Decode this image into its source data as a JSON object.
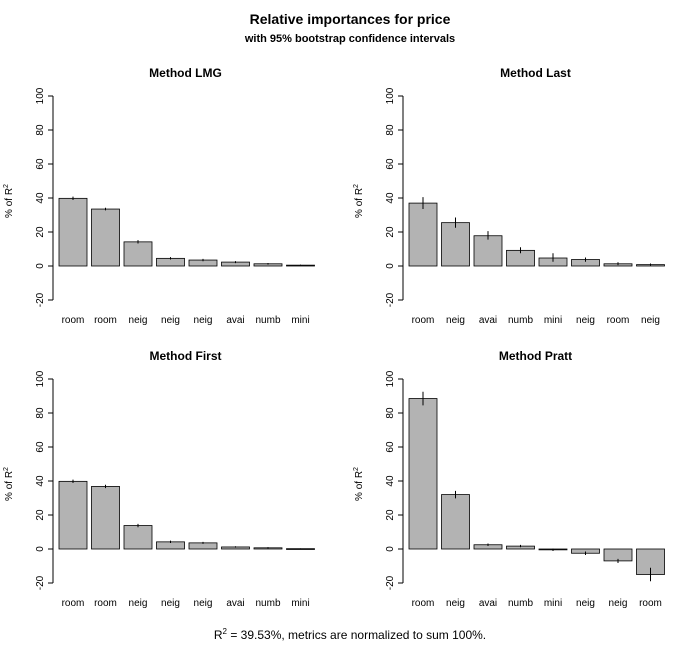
{
  "figure": {
    "title": "Relative importances for price",
    "subtitle": "with 95% bootstrap confidence intervals",
    "footnote": {
      "r2_prefix": "R",
      "r2_sup": "2",
      "r2_rest": " = 39.53%, metrics are normalized to sum 100%."
    }
  },
  "colors": {
    "bar_fill": "#b3b3b3",
    "bar_stroke": "#000000",
    "axis": "#000000"
  },
  "chart_data": [
    {
      "type": "bar",
      "title": "Method LMG",
      "ylabel": "% of R2",
      "ylim": [
        -20,
        100
      ],
      "yticks": [
        -20,
        0,
        20,
        40,
        60,
        80,
        100
      ],
      "categories": [
        "room",
        "room",
        "neig",
        "neig",
        "neig",
        "avai",
        "numb",
        "mini"
      ],
      "values": [
        39.8,
        33.5,
        14.2,
        4.5,
        3.5,
        2.3,
        1.3,
        0.5
      ],
      "ci_low": [
        38.8,
        32.7,
        13.2,
        3.8,
        2.8,
        1.7,
        0.8,
        0.2
      ],
      "ci_high": [
        40.8,
        34.3,
        15.2,
        5.2,
        4.2,
        2.9,
        1.8,
        0.8
      ]
    },
    {
      "type": "bar",
      "title": "Method Last",
      "ylabel": "% of R2",
      "ylim": [
        -20,
        100
      ],
      "yticks": [
        -20,
        0,
        20,
        40,
        60,
        80,
        100
      ],
      "categories": [
        "room",
        "neig",
        "avai",
        "numb",
        "mini",
        "neig",
        "room",
        "neig"
      ],
      "values": [
        37.0,
        25.5,
        17.8,
        9.2,
        4.7,
        3.8,
        1.3,
        0.8
      ],
      "ci_low": [
        33.5,
        22.5,
        15.5,
        7.5,
        2.5,
        2.5,
        0.5,
        0.2
      ],
      "ci_high": [
        40.5,
        28.5,
        20.5,
        11.0,
        7.5,
        5.0,
        2.2,
        1.5
      ]
    },
    {
      "type": "bar",
      "title": "Method First",
      "ylabel": "% of R2",
      "ylim": [
        -20,
        100
      ],
      "yticks": [
        -20,
        0,
        20,
        40,
        60,
        80,
        100
      ],
      "categories": [
        "room",
        "room",
        "neig",
        "neig",
        "neig",
        "avai",
        "numb",
        "mini"
      ],
      "values": [
        39.8,
        36.8,
        13.8,
        4.2,
        3.6,
        1.2,
        0.7,
        0.2
      ],
      "ci_low": [
        38.8,
        35.8,
        12.8,
        3.5,
        3.0,
        0.8,
        0.3,
        0.0
      ],
      "ci_high": [
        40.8,
        37.8,
        14.8,
        4.9,
        4.2,
        1.6,
        1.1,
        0.4
      ]
    },
    {
      "type": "bar",
      "title": "Method Pratt",
      "ylabel": "% of R2",
      "ylim": [
        -20,
        100
      ],
      "yticks": [
        -20,
        0,
        20,
        40,
        60,
        80,
        100
      ],
      "categories": [
        "room",
        "neig",
        "avai",
        "numb",
        "mini",
        "neig",
        "neig",
        "room"
      ],
      "values": [
        88.5,
        32.0,
        2.5,
        1.7,
        -0.5,
        -2.5,
        -7.0,
        -15.0
      ],
      "ci_low": [
        84.5,
        29.8,
        1.8,
        1.0,
        -1.2,
        -3.5,
        -8.2,
        -19.0
      ],
      "ci_high": [
        92.5,
        34.2,
        3.2,
        2.4,
        0.2,
        -1.5,
        -5.8,
        -11.0
      ]
    }
  ]
}
